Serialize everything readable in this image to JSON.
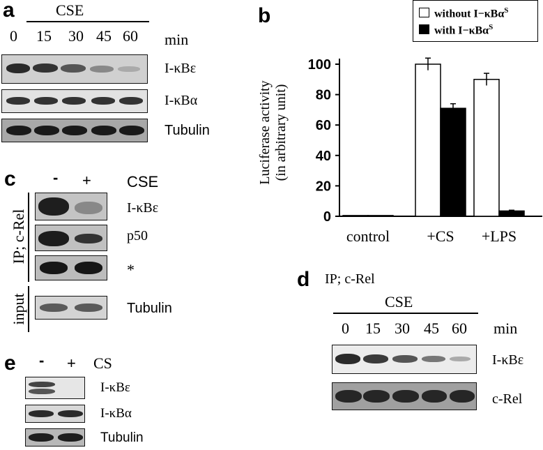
{
  "panel_a": {
    "label": "a",
    "treatment": "CSE",
    "times": [
      "0",
      "15",
      "30",
      "45",
      "60"
    ],
    "unit": "min",
    "blots": [
      "I-κBε",
      "I-κBα",
      "Tubulin"
    ]
  },
  "panel_b": {
    "label": "b",
    "legend": [
      {
        "text": "without I−κBα",
        "sup": "S",
        "color": "#ffffff"
      },
      {
        "text": "with I−κBα",
        "sup": "S",
        "color": "#000000"
      }
    ],
    "ylabel_line1": "Luciferase activity",
    "ylabel_line2": "(in arbitrary unit)",
    "yticks": [
      "0",
      "20",
      "40",
      "60",
      "80",
      "100"
    ],
    "categories": [
      "control",
      "+CS",
      "+LPS"
    ]
  },
  "chart_data": {
    "type": "bar",
    "categories": [
      "control",
      "+CS",
      "+LPS"
    ],
    "series": [
      {
        "name": "without I−κBαS",
        "values": [
          0.5,
          100,
          90
        ],
        "errors": [
          0,
          4,
          4
        ]
      },
      {
        "name": "with I−κBαS",
        "values": [
          0.5,
          71,
          3.5
        ],
        "errors": [
          0,
          3,
          0.5
        ]
      }
    ],
    "xlabel": "",
    "ylabel": "Luciferase activity (in arbitrary unit)",
    "ylim": [
      0,
      100
    ],
    "legend_position": "top-right"
  },
  "panel_c": {
    "label": "c",
    "minus": "-",
    "plus": "+",
    "treatment": "CSE",
    "ip_label": "IP; c-Rel",
    "input_label": "input",
    "blots": [
      "I-κBε",
      "p50",
      "*",
      "Tubulin"
    ]
  },
  "panel_d": {
    "label": "d",
    "ip_label": "IP; c-Rel",
    "treatment": "CSE",
    "times": [
      "0",
      "15",
      "30",
      "45",
      "60"
    ],
    "unit": "min",
    "blots": [
      "I-κBε",
      "c-Rel"
    ]
  },
  "panel_e": {
    "label": "e",
    "minus": "-",
    "plus": "+",
    "treatment": "CS",
    "blots": [
      "I-κBε",
      "I-κBα",
      "Tubulin"
    ]
  }
}
